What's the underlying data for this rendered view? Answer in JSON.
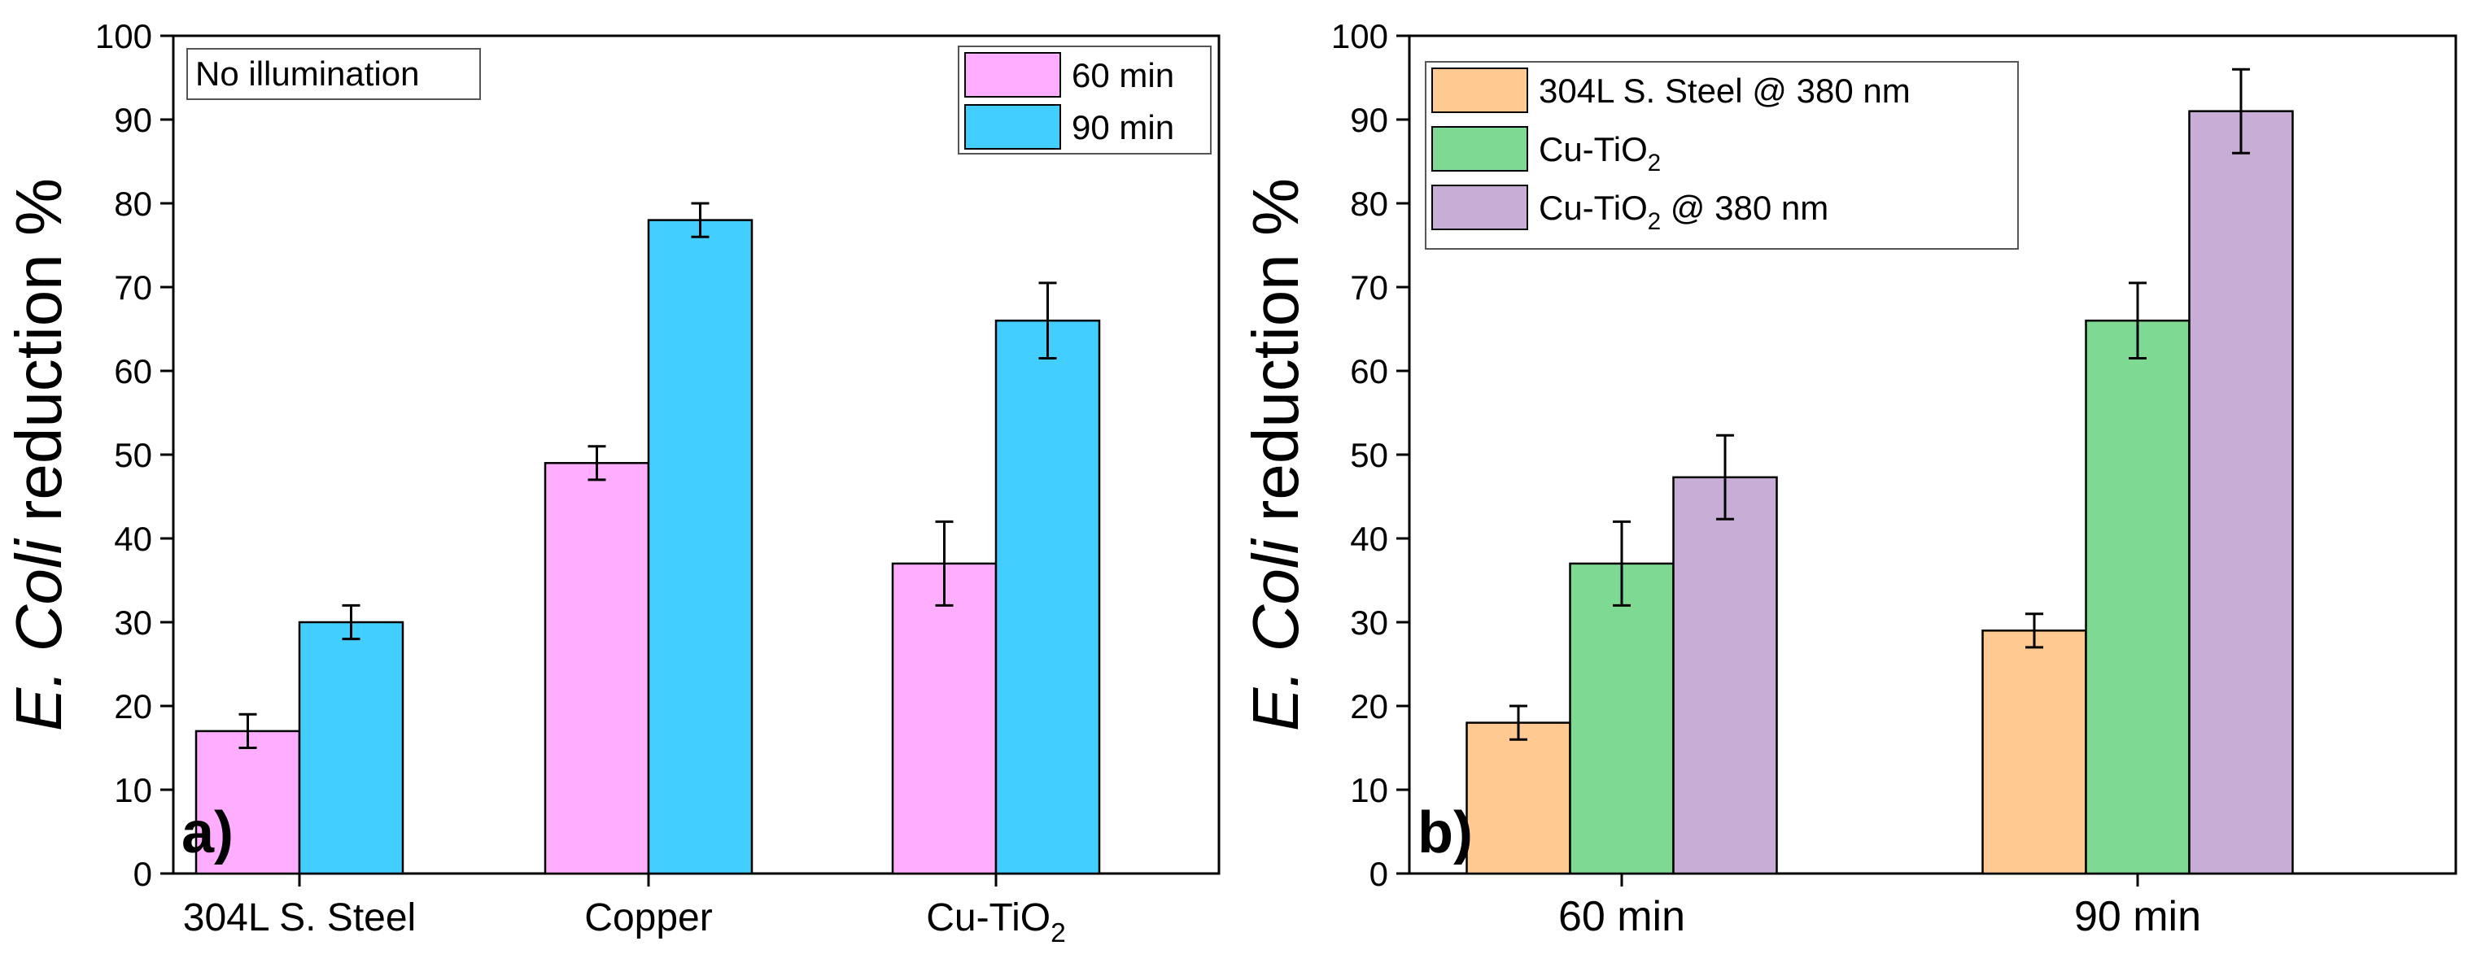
{
  "chart_data": [
    {
      "type": "bar",
      "panel_label": "a)",
      "ylabel_italic": "E. Coli",
      "ylabel_rest": " reduction %",
      "ylim": [
        0,
        100
      ],
      "yticks": [
        "0",
        "10",
        "20",
        "30",
        "40",
        "50",
        "60",
        "70",
        "80",
        "90",
        "100"
      ],
      "categories": [
        {
          "main": "304L S. Steel",
          "sub": "",
          "tail": ""
        },
        {
          "main": "Copper",
          "sub": "",
          "tail": ""
        },
        {
          "main": "Cu-TiO",
          "sub": "2",
          "tail": ""
        }
      ],
      "annotation": "No illumination",
      "legend_position": "top-right",
      "series": [
        {
          "name": {
            "main": "60 min",
            "sub": "",
            "tail": ""
          },
          "color": "#FFADFF",
          "values": [
            17,
            49,
            37
          ],
          "errors": [
            2,
            2,
            5
          ]
        },
        {
          "name": {
            "main": "90 min",
            "sub": "",
            "tail": ""
          },
          "color": "#42CEFF",
          "values": [
            30,
            78,
            66
          ],
          "errors": [
            2,
            2,
            4.5
          ]
        }
      ]
    },
    {
      "type": "bar",
      "panel_label": "b)",
      "ylabel_italic": "E. Coli",
      "ylabel_rest": " reduction %",
      "ylim": [
        0,
        100
      ],
      "yticks": [
        "0",
        "10",
        "20",
        "30",
        "40",
        "50",
        "60",
        "70",
        "80",
        "90",
        "100"
      ],
      "categories": [
        {
          "main": "60 min",
          "sub": "",
          "tail": ""
        },
        {
          "main": "90 min",
          "sub": "",
          "tail": ""
        }
      ],
      "annotation": "",
      "legend_position": "top-left",
      "series": [
        {
          "name": {
            "main": "304L S. Steel @ 380 nm",
            "sub": "",
            "tail": ""
          },
          "color": "#FFC992",
          "values": [
            18,
            29
          ],
          "errors": [
            2,
            2
          ]
        },
        {
          "name": {
            "main": "Cu-TiO",
            "sub": "2",
            "tail": ""
          },
          "color": "#7ED993",
          "values": [
            37,
            66
          ],
          "errors": [
            5,
            4.5
          ]
        },
        {
          "name": {
            "main": "Cu-TiO",
            "sub": "2",
            "tail": " @ 380 nm"
          },
          "color": "#C8AED6",
          "values": [
            47.3,
            91
          ],
          "errors": [
            5,
            5
          ]
        }
      ]
    }
  ]
}
